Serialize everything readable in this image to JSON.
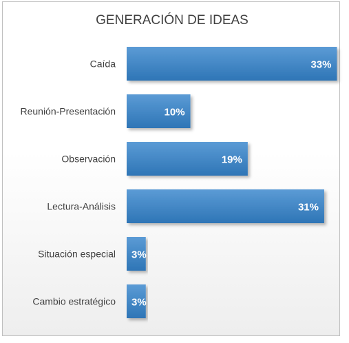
{
  "chart_data": {
    "type": "bar",
    "orientation": "horizontal",
    "title": "GENERACIÓN DE IDEAS",
    "categories": [
      "Caída",
      "Reunión-Presentación",
      "Observación",
      "Lectura-Análisis",
      "Situación especial",
      "Cambio estratégico"
    ],
    "values": [
      33,
      10,
      19,
      31,
      3,
      3
    ],
    "data_labels": [
      "33%",
      "10%",
      "19%",
      "31%",
      "3%",
      "3%"
    ],
    "unit": "%",
    "xlim": [
      0,
      35
    ],
    "grid": false,
    "legend": "none",
    "colors": {
      "bar_top": "#5b9bd5",
      "bar_bottom": "#2e75b6",
      "label": "#ffffff",
      "text": "#404040"
    }
  }
}
